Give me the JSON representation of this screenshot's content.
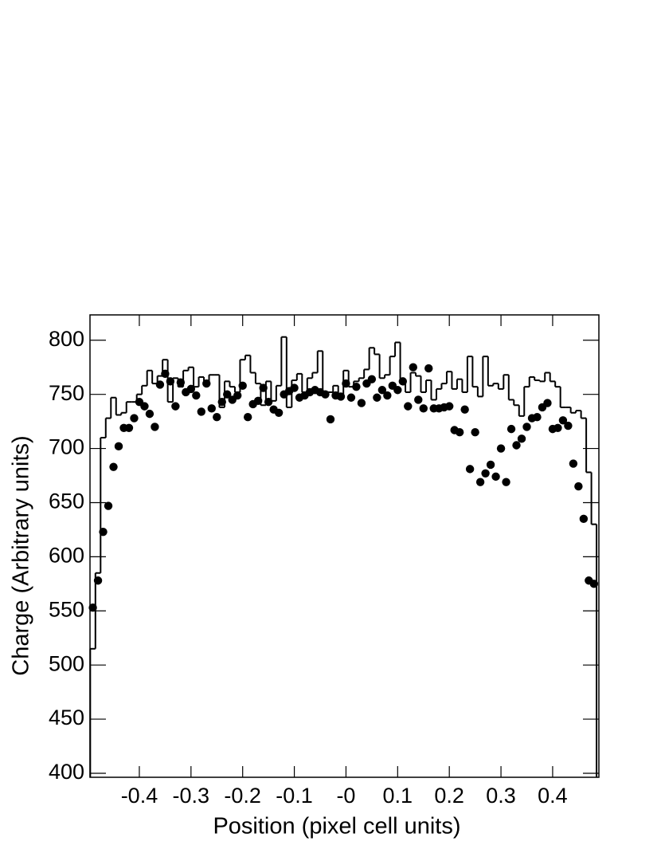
{
  "chart_data": [
    {
      "type": "histogram",
      "x_label": "Position (pixel cell units)",
      "y_label": "Charge (Arbitrary units)",
      "color": "#000000",
      "xlim": [
        -0.4955,
        0.4895
      ],
      "ylim": [
        396.3,
        823.4
      ],
      "xticks": [
        -0.4,
        -0.3,
        -0.2,
        -0.1,
        {
          "value": 0,
          "label": "-0"
        },
        0.1,
        0.2,
        0.3,
        0.4
      ],
      "yticks": [
        400,
        450,
        500,
        550,
        600,
        650,
        700,
        750,
        800
      ],
      "bins": [
        -0.495,
        -0.485,
        -0.475,
        -0.465,
        -0.455,
        -0.445,
        -0.435,
        -0.425,
        -0.415,
        -0.405,
        -0.395,
        -0.385,
        -0.375,
        -0.365,
        -0.355,
        -0.345,
        -0.335,
        -0.325,
        -0.315,
        -0.305,
        -0.295,
        -0.285,
        -0.275,
        -0.265,
        -0.255,
        -0.245,
        -0.235,
        -0.225,
        -0.215,
        -0.205,
        -0.195,
        -0.185,
        -0.175,
        -0.165,
        -0.155,
        -0.145,
        -0.135,
        -0.125,
        -0.115,
        -0.105,
        -0.095,
        -0.085,
        -0.075,
        -0.065,
        -0.055,
        -0.045,
        -0.035,
        -0.025,
        -0.015,
        -0.005,
        0.005,
        0.015,
        0.025,
        0.035,
        0.045,
        0.055,
        0.065,
        0.075,
        0.085,
        0.095,
        0.105,
        0.115,
        0.125,
        0.135,
        0.145,
        0.155,
        0.165,
        0.175,
        0.185,
        0.195,
        0.205,
        0.215,
        0.225,
        0.235,
        0.245,
        0.255,
        0.265,
        0.275,
        0.285,
        0.295,
        0.305,
        0.315,
        0.325,
        0.335,
        0.345,
        0.355,
        0.365,
        0.375,
        0.385,
        0.395,
        0.405,
        0.415,
        0.425,
        0.435,
        0.445,
        0.455,
        0.465,
        0.475,
        0.485
      ],
      "values": [
        515,
        585,
        710,
        728,
        747,
        731,
        733,
        743,
        743,
        750,
        758,
        772,
        760,
        767,
        782,
        743,
        765,
        757,
        772,
        775,
        757,
        766,
        760,
        768,
        768,
        738,
        762,
        757,
        752,
        782,
        786,
        770,
        760,
        740,
        762,
        744,
        758,
        803,
        738,
        763,
        769,
        752,
        765,
        770,
        790,
        752,
        752,
        758,
        750,
        772,
        757,
        762,
        765,
        773,
        793,
        787,
        765,
        768,
        785,
        798,
        760,
        752,
        770,
        767,
        752,
        763,
        745,
        755,
        760,
        771,
        755,
        764,
        752,
        785,
        757,
        748,
        785,
        758,
        760,
        755,
        768,
        745,
        740,
        730,
        757,
        766,
        763,
        762,
        770,
        762,
        757,
        738,
        738,
        733,
        735,
        728,
        678,
        630
      ]
    },
    {
      "type": "scatter",
      "color": "#000000",
      "x": [
        -0.49,
        -0.48,
        -0.47,
        -0.46,
        -0.45,
        -0.44,
        -0.43,
        -0.42,
        -0.41,
        -0.4,
        -0.39,
        -0.38,
        -0.37,
        -0.36,
        -0.35,
        -0.34,
        -0.33,
        -0.32,
        -0.31,
        -0.3,
        -0.29,
        -0.28,
        -0.27,
        -0.26,
        -0.25,
        -0.24,
        -0.23,
        -0.22,
        -0.21,
        -0.2,
        -0.19,
        -0.18,
        -0.17,
        -0.16,
        -0.15,
        -0.14,
        -0.13,
        -0.12,
        -0.11,
        -0.1,
        -0.09,
        -0.08,
        -0.07,
        -0.06,
        -0.05,
        -0.04,
        -0.03,
        -0.02,
        -0.01,
        0,
        0.01,
        0.02,
        0.03,
        0.04,
        0.05,
        0.06,
        0.07,
        0.08,
        0.09,
        0.1,
        0.11,
        0.12,
        0.13,
        0.14,
        0.15,
        0.16,
        0.17,
        0.18,
        0.19,
        0.2,
        0.21,
        0.22,
        0.23,
        0.24,
        0.25,
        0.26,
        0.27,
        0.28,
        0.29,
        0.3,
        0.31,
        0.32,
        0.33,
        0.34,
        0.35,
        0.36,
        0.37,
        0.38,
        0.39,
        0.4,
        0.41,
        0.42,
        0.43,
        0.44,
        0.45,
        0.46,
        0.47,
        0.48
      ],
      "values": [
        553,
        578,
        623,
        647,
        683,
        702,
        719,
        719,
        728,
        743,
        739,
        732,
        720,
        759,
        769,
        762,
        739,
        761,
        752,
        755,
        749,
        734,
        760,
        737,
        729,
        743,
        750,
        745,
        749,
        758,
        729,
        741,
        744,
        756,
        743,
        736,
        733,
        750,
        753,
        756,
        747,
        749,
        752,
        754,
        752,
        750,
        727,
        749,
        748,
        760,
        747,
        757,
        742,
        760,
        764,
        747,
        754,
        749,
        758,
        754,
        762,
        739,
        775,
        745,
        737,
        774,
        737,
        737,
        738,
        739,
        717,
        715,
        736,
        681,
        715,
        669,
        677,
        685,
        674,
        700,
        669,
        718,
        703,
        709,
        720,
        728,
        729,
        738,
        742,
        718,
        719,
        726,
        721,
        686,
        665,
        635,
        578,
        575
      ]
    }
  ]
}
